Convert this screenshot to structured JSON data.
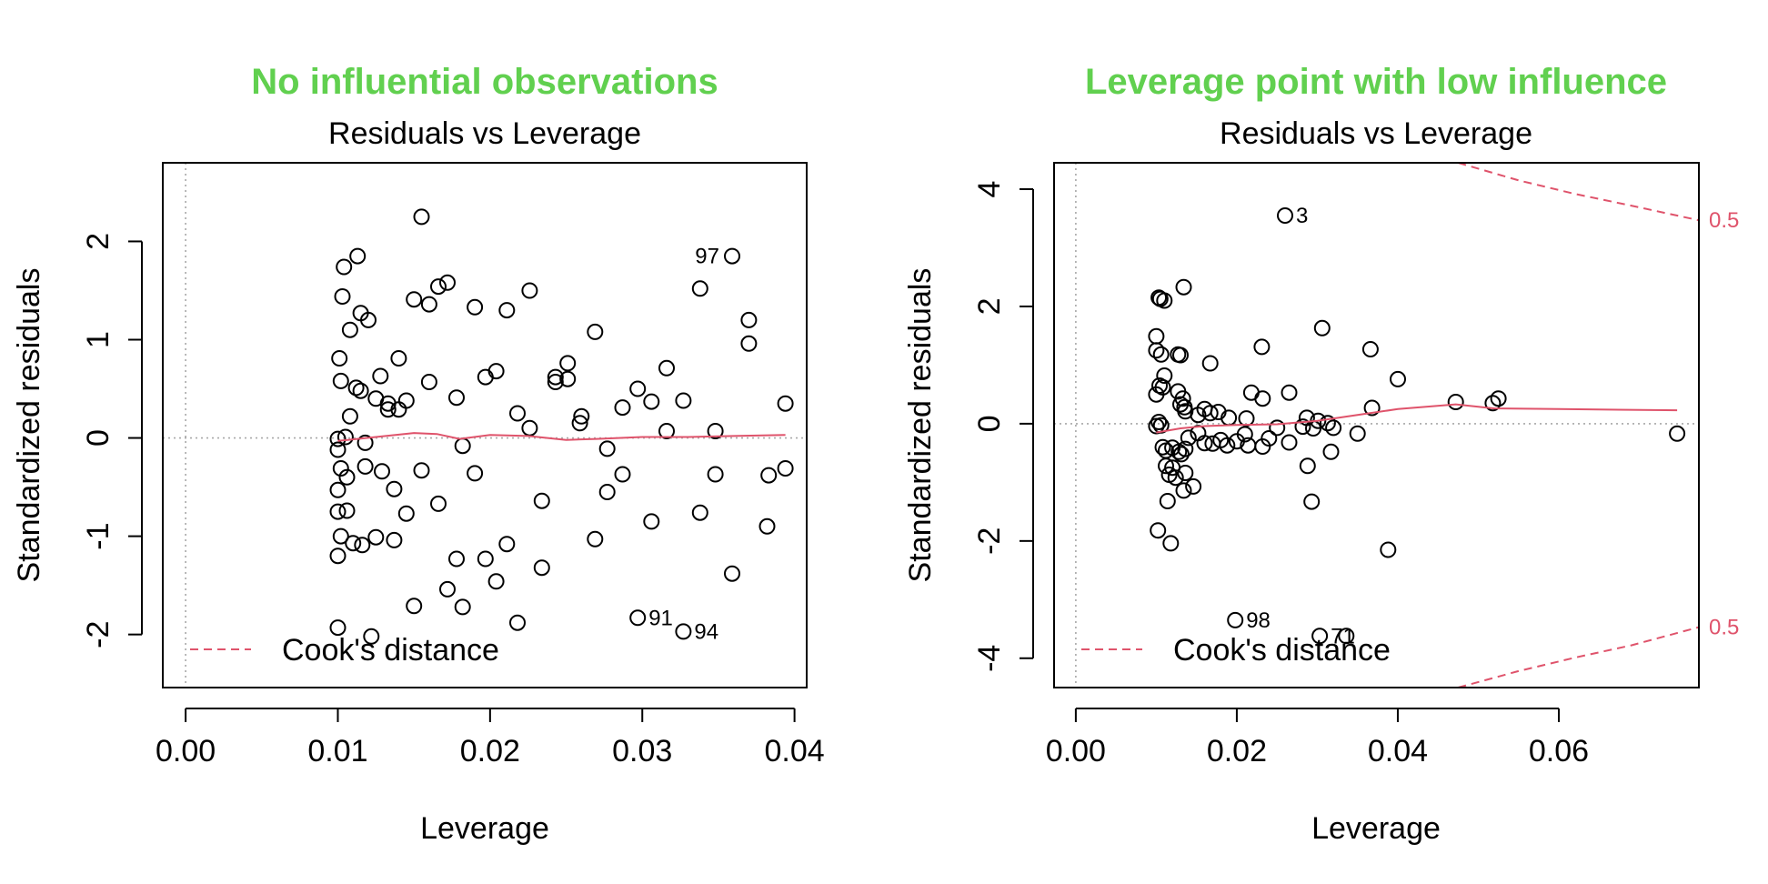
{
  "chart_data": [
    {
      "type": "scatter",
      "suptitle": "No influential observations",
      "title": "Residuals vs Leverage",
      "xlabel": "Leverage",
      "ylabel": "Standardized residuals",
      "xlim": [
        -0.0015,
        0.0408
      ],
      "ylim": [
        -2.54,
        2.8
      ],
      "xticks": [
        0.0,
        0.01,
        0.02,
        0.03,
        0.04
      ],
      "xtick_labels": [
        "0.00",
        "0.01",
        "0.02",
        "0.03",
        "0.04"
      ],
      "yticks": [
        -2,
        -1,
        0,
        1,
        2
      ],
      "ytick_labels": [
        "-2",
        "-1",
        "0",
        "1",
        "2"
      ],
      "legend": {
        "label": "Cook's distance",
        "position": "bottom-left"
      },
      "points": [
        [
          0.0155,
          2.25
        ],
        [
          0.0113,
          1.85
        ],
        [
          0.0104,
          1.74
        ],
        [
          0.0103,
          1.44
        ],
        [
          0.0115,
          1.27
        ],
        [
          0.012,
          1.2
        ],
        [
          0.0108,
          1.1
        ],
        [
          0.0101,
          0.81
        ],
        [
          0.0102,
          0.58
        ],
        [
          0.0112,
          0.51
        ],
        [
          0.0115,
          0.48
        ],
        [
          0.0128,
          0.63
        ],
        [
          0.0133,
          0.35
        ],
        [
          0.0133,
          0.29
        ],
        [
          0.014,
          0.29
        ],
        [
          0.0145,
          0.38
        ],
        [
          0.014,
          0.81
        ],
        [
          0.015,
          1.41
        ],
        [
          0.016,
          1.36
        ],
        [
          0.0166,
          1.54
        ],
        [
          0.0172,
          1.58
        ],
        [
          0.019,
          1.33
        ],
        [
          0.0211,
          1.3
        ],
        [
          0.0226,
          1.5
        ],
        [
          0.016,
          0.57
        ],
        [
          0.0178,
          0.41
        ],
        [
          0.0197,
          0.62
        ],
        [
          0.0204,
          0.68
        ],
        [
          0.0108,
          0.22
        ],
        [
          0.0125,
          0.4
        ],
        [
          0.0218,
          0.25
        ],
        [
          0.0226,
          0.1
        ],
        [
          0.0243,
          0.62
        ],
        [
          0.0243,
          0.57
        ],
        [
          0.0251,
          0.6
        ],
        [
          0.0251,
          0.76
        ],
        [
          0.0269,
          1.08
        ],
        [
          0.026,
          0.22
        ],
        [
          0.0259,
          0.15
        ],
        [
          0.0287,
          0.31
        ],
        [
          0.0297,
          0.5
        ],
        [
          0.0306,
          0.37
        ],
        [
          0.0316,
          0.71
        ],
        [
          0.0316,
          0.07
        ],
        [
          0.0327,
          0.38
        ],
        [
          0.0338,
          1.52
        ],
        [
          0.0359,
          1.85
        ],
        [
          0.037,
          1.2
        ],
        [
          0.037,
          0.96
        ],
        [
          0.0394,
          0.35
        ],
        [
          0.0348,
          0.07
        ],
        [
          0.01,
          -0.01
        ],
        [
          0.0105,
          0.01
        ],
        [
          0.01,
          -0.12
        ],
        [
          0.0102,
          -0.31
        ],
        [
          0.0106,
          -0.4
        ],
        [
          0.0118,
          -0.29
        ],
        [
          0.0118,
          -0.05
        ],
        [
          0.0129,
          -0.34
        ],
        [
          0.0137,
          -0.52
        ],
        [
          0.0155,
          -0.33
        ],
        [
          0.0182,
          -0.08
        ],
        [
          0.019,
          -0.36
        ],
        [
          0.01,
          -0.53
        ],
        [
          0.01,
          -0.75
        ],
        [
          0.0106,
          -0.74
        ],
        [
          0.0145,
          -0.77
        ],
        [
          0.0166,
          -0.67
        ],
        [
          0.0102,
          -1.0
        ],
        [
          0.011,
          -1.07
        ],
        [
          0.0116,
          -1.09
        ],
        [
          0.0125,
          -1.01
        ],
        [
          0.0137,
          -1.04
        ],
        [
          0.01,
          -1.2
        ],
        [
          0.0178,
          -1.23
        ],
        [
          0.0197,
          -1.23
        ],
        [
          0.0211,
          -1.08
        ],
        [
          0.0234,
          -0.64
        ],
        [
          0.0269,
          -1.03
        ],
        [
          0.0277,
          -0.55
        ],
        [
          0.0277,
          -0.11
        ],
        [
          0.0287,
          -0.37
        ],
        [
          0.0306,
          -0.85
        ],
        [
          0.0338,
          -0.76
        ],
        [
          0.0348,
          -0.37
        ],
        [
          0.0383,
          -0.38
        ],
        [
          0.0394,
          -0.31
        ],
        [
          0.0382,
          -0.9
        ],
        [
          0.0359,
          -1.38
        ],
        [
          0.0204,
          -1.46
        ],
        [
          0.0234,
          -1.32
        ],
        [
          0.015,
          -1.71
        ],
        [
          0.0172,
          -1.54
        ],
        [
          0.0182,
          -1.72
        ],
        [
          0.0218,
          -1.88
        ],
        [
          0.01,
          -1.93
        ],
        [
          0.0122,
          -2.02
        ],
        [
          0.0297,
          -1.83
        ],
        [
          0.0327,
          -1.97
        ]
      ],
      "labeled_points": [
        {
          "label": "97",
          "x": 0.0359,
          "y": 1.85
        },
        {
          "label": "91",
          "x": 0.0297,
          "y": -1.83
        },
        {
          "label": "94",
          "x": 0.0327,
          "y": -1.97
        }
      ],
      "smooth_line": [
        [
          0.01,
          -0.03
        ],
        [
          0.0125,
          0.01
        ],
        [
          0.015,
          0.05
        ],
        [
          0.0165,
          0.04
        ],
        [
          0.018,
          -0.01
        ],
        [
          0.02,
          0.03
        ],
        [
          0.0225,
          0.02
        ],
        [
          0.025,
          -0.02
        ],
        [
          0.027,
          -0.01
        ],
        [
          0.03,
          0.01
        ],
        [
          0.033,
          0.01
        ],
        [
          0.036,
          0.02
        ],
        [
          0.0394,
          0.03
        ]
      ],
      "cook_contours": [],
      "cook_contour_labels": []
    },
    {
      "type": "scatter",
      "suptitle": "Leverage point with low influence",
      "title": "Residuals vs Leverage",
      "xlabel": "Leverage",
      "ylabel": "Standardized residuals",
      "xlim": [
        -0.0027,
        0.0774
      ],
      "ylim": [
        -4.5,
        4.45
      ],
      "xticks": [
        0.0,
        0.02,
        0.04,
        0.06
      ],
      "xtick_labels": [
        "0.00",
        "0.02",
        "0.04",
        "0.06"
      ],
      "yticks": [
        -4,
        -2,
        0,
        2,
        4
      ],
      "ytick_labels": [
        "-4",
        "-2",
        "0",
        "2",
        "4"
      ],
      "legend": {
        "label": "Cook's distance",
        "position": "bottom-left"
      },
      "points": [
        [
          0.026,
          3.55
        ],
        [
          0.0103,
          2.15
        ],
        [
          0.0105,
          2.13
        ],
        [
          0.011,
          2.1
        ],
        [
          0.0134,
          2.33
        ],
        [
          0.01,
          1.49
        ],
        [
          0.01,
          1.25
        ],
        [
          0.0106,
          1.18
        ],
        [
          0.0127,
          1.18
        ],
        [
          0.013,
          1.17
        ],
        [
          0.0231,
          1.31
        ],
        [
          0.0306,
          1.63
        ],
        [
          0.0366,
          1.27
        ],
        [
          0.04,
          0.76
        ],
        [
          0.0167,
          1.03
        ],
        [
          0.011,
          0.82
        ],
        [
          0.0104,
          0.65
        ],
        [
          0.0108,
          0.62
        ],
        [
          0.0127,
          0.55
        ],
        [
          0.0133,
          0.43
        ],
        [
          0.013,
          0.33
        ],
        [
          0.0135,
          0.28
        ],
        [
          0.01,
          0.5
        ],
        [
          0.0218,
          0.53
        ],
        [
          0.0232,
          0.43
        ],
        [
          0.0265,
          0.53
        ],
        [
          0.0136,
          0.21
        ],
        [
          0.0152,
          0.15
        ],
        [
          0.016,
          0.25
        ],
        [
          0.0167,
          0.18
        ],
        [
          0.0177,
          0.2
        ],
        [
          0.019,
          0.1
        ],
        [
          0.0212,
          0.09
        ],
        [
          0.0287,
          0.1
        ],
        [
          0.0301,
          0.05
        ],
        [
          0.0313,
          0.01
        ],
        [
          0.0368,
          0.27
        ],
        [
          0.0472,
          0.37
        ],
        [
          0.0518,
          0.35
        ],
        [
          0.0525,
          0.43
        ],
        [
          0.0747,
          -0.17
        ],
        [
          0.0103,
          0.03
        ],
        [
          0.0106,
          -0.03
        ],
        [
          0.01,
          -0.04
        ],
        [
          0.0108,
          -0.4
        ],
        [
          0.0112,
          -0.46
        ],
        [
          0.012,
          -0.41
        ],
        [
          0.0128,
          -0.48
        ],
        [
          0.0131,
          -0.52
        ],
        [
          0.0136,
          -0.43
        ],
        [
          0.014,
          -0.24
        ],
        [
          0.0152,
          -0.16
        ],
        [
          0.016,
          -0.33
        ],
        [
          0.017,
          -0.34
        ],
        [
          0.018,
          -0.28
        ],
        [
          0.0188,
          -0.37
        ],
        [
          0.02,
          -0.3
        ],
        [
          0.021,
          -0.18
        ],
        [
          0.0214,
          -0.37
        ],
        [
          0.0232,
          -0.39
        ],
        [
          0.024,
          -0.25
        ],
        [
          0.025,
          -0.07
        ],
        [
          0.0265,
          -0.32
        ],
        [
          0.0282,
          -0.05
        ],
        [
          0.0295,
          -0.08
        ],
        [
          0.032,
          -0.07
        ],
        [
          0.035,
          -0.17
        ],
        [
          0.0112,
          -0.72
        ],
        [
          0.0116,
          -0.87
        ],
        [
          0.0124,
          -0.92
        ],
        [
          0.012,
          -0.75
        ],
        [
          0.0136,
          -0.84
        ],
        [
          0.0146,
          -1.07
        ],
        [
          0.0134,
          -1.14
        ],
        [
          0.0114,
          -1.32
        ],
        [
          0.0288,
          -0.72
        ],
        [
          0.0293,
          -1.33
        ],
        [
          0.0317,
          -0.48
        ],
        [
          0.0102,
          -1.82
        ],
        [
          0.0118,
          -2.04
        ],
        [
          0.0388,
          -2.15
        ],
        [
          0.0198,
          -3.35
        ],
        [
          0.0303,
          -3.62
        ],
        [
          0.0336,
          -3.62
        ]
      ],
      "labeled_points": [
        {
          "label": "3",
          "x": 0.026,
          "y": 3.55
        },
        {
          "label": "98",
          "x": 0.0198,
          "y": -3.35
        },
        {
          "label": "71",
          "x": 0.0303,
          "y": -3.62
        }
      ],
      "smooth_line": [
        [
          0.01,
          -0.15
        ],
        [
          0.013,
          -0.08
        ],
        [
          0.016,
          -0.04
        ],
        [
          0.02,
          -0.02
        ],
        [
          0.025,
          -0.01
        ],
        [
          0.03,
          0.05
        ],
        [
          0.035,
          0.15
        ],
        [
          0.04,
          0.25
        ],
        [
          0.0472,
          0.33
        ],
        [
          0.052,
          0.26
        ],
        [
          0.06,
          0.25
        ],
        [
          0.0747,
          0.23
        ]
      ],
      "cook_contours": [
        [
          [
            0.0475,
            4.45
          ],
          [
            0.055,
            4.15
          ],
          [
            0.062,
            3.92
          ],
          [
            0.069,
            3.72
          ],
          [
            0.0774,
            3.47
          ]
        ],
        [
          [
            0.0475,
            -4.5
          ],
          [
            0.055,
            -4.22
          ],
          [
            0.062,
            -3.99
          ],
          [
            0.069,
            -3.78
          ],
          [
            0.0774,
            -3.47
          ]
        ]
      ],
      "cook_contour_labels": [
        {
          "label": "0.5",
          "y": 3.47
        },
        {
          "label": "0.5",
          "y": -3.47
        }
      ]
    }
  ]
}
